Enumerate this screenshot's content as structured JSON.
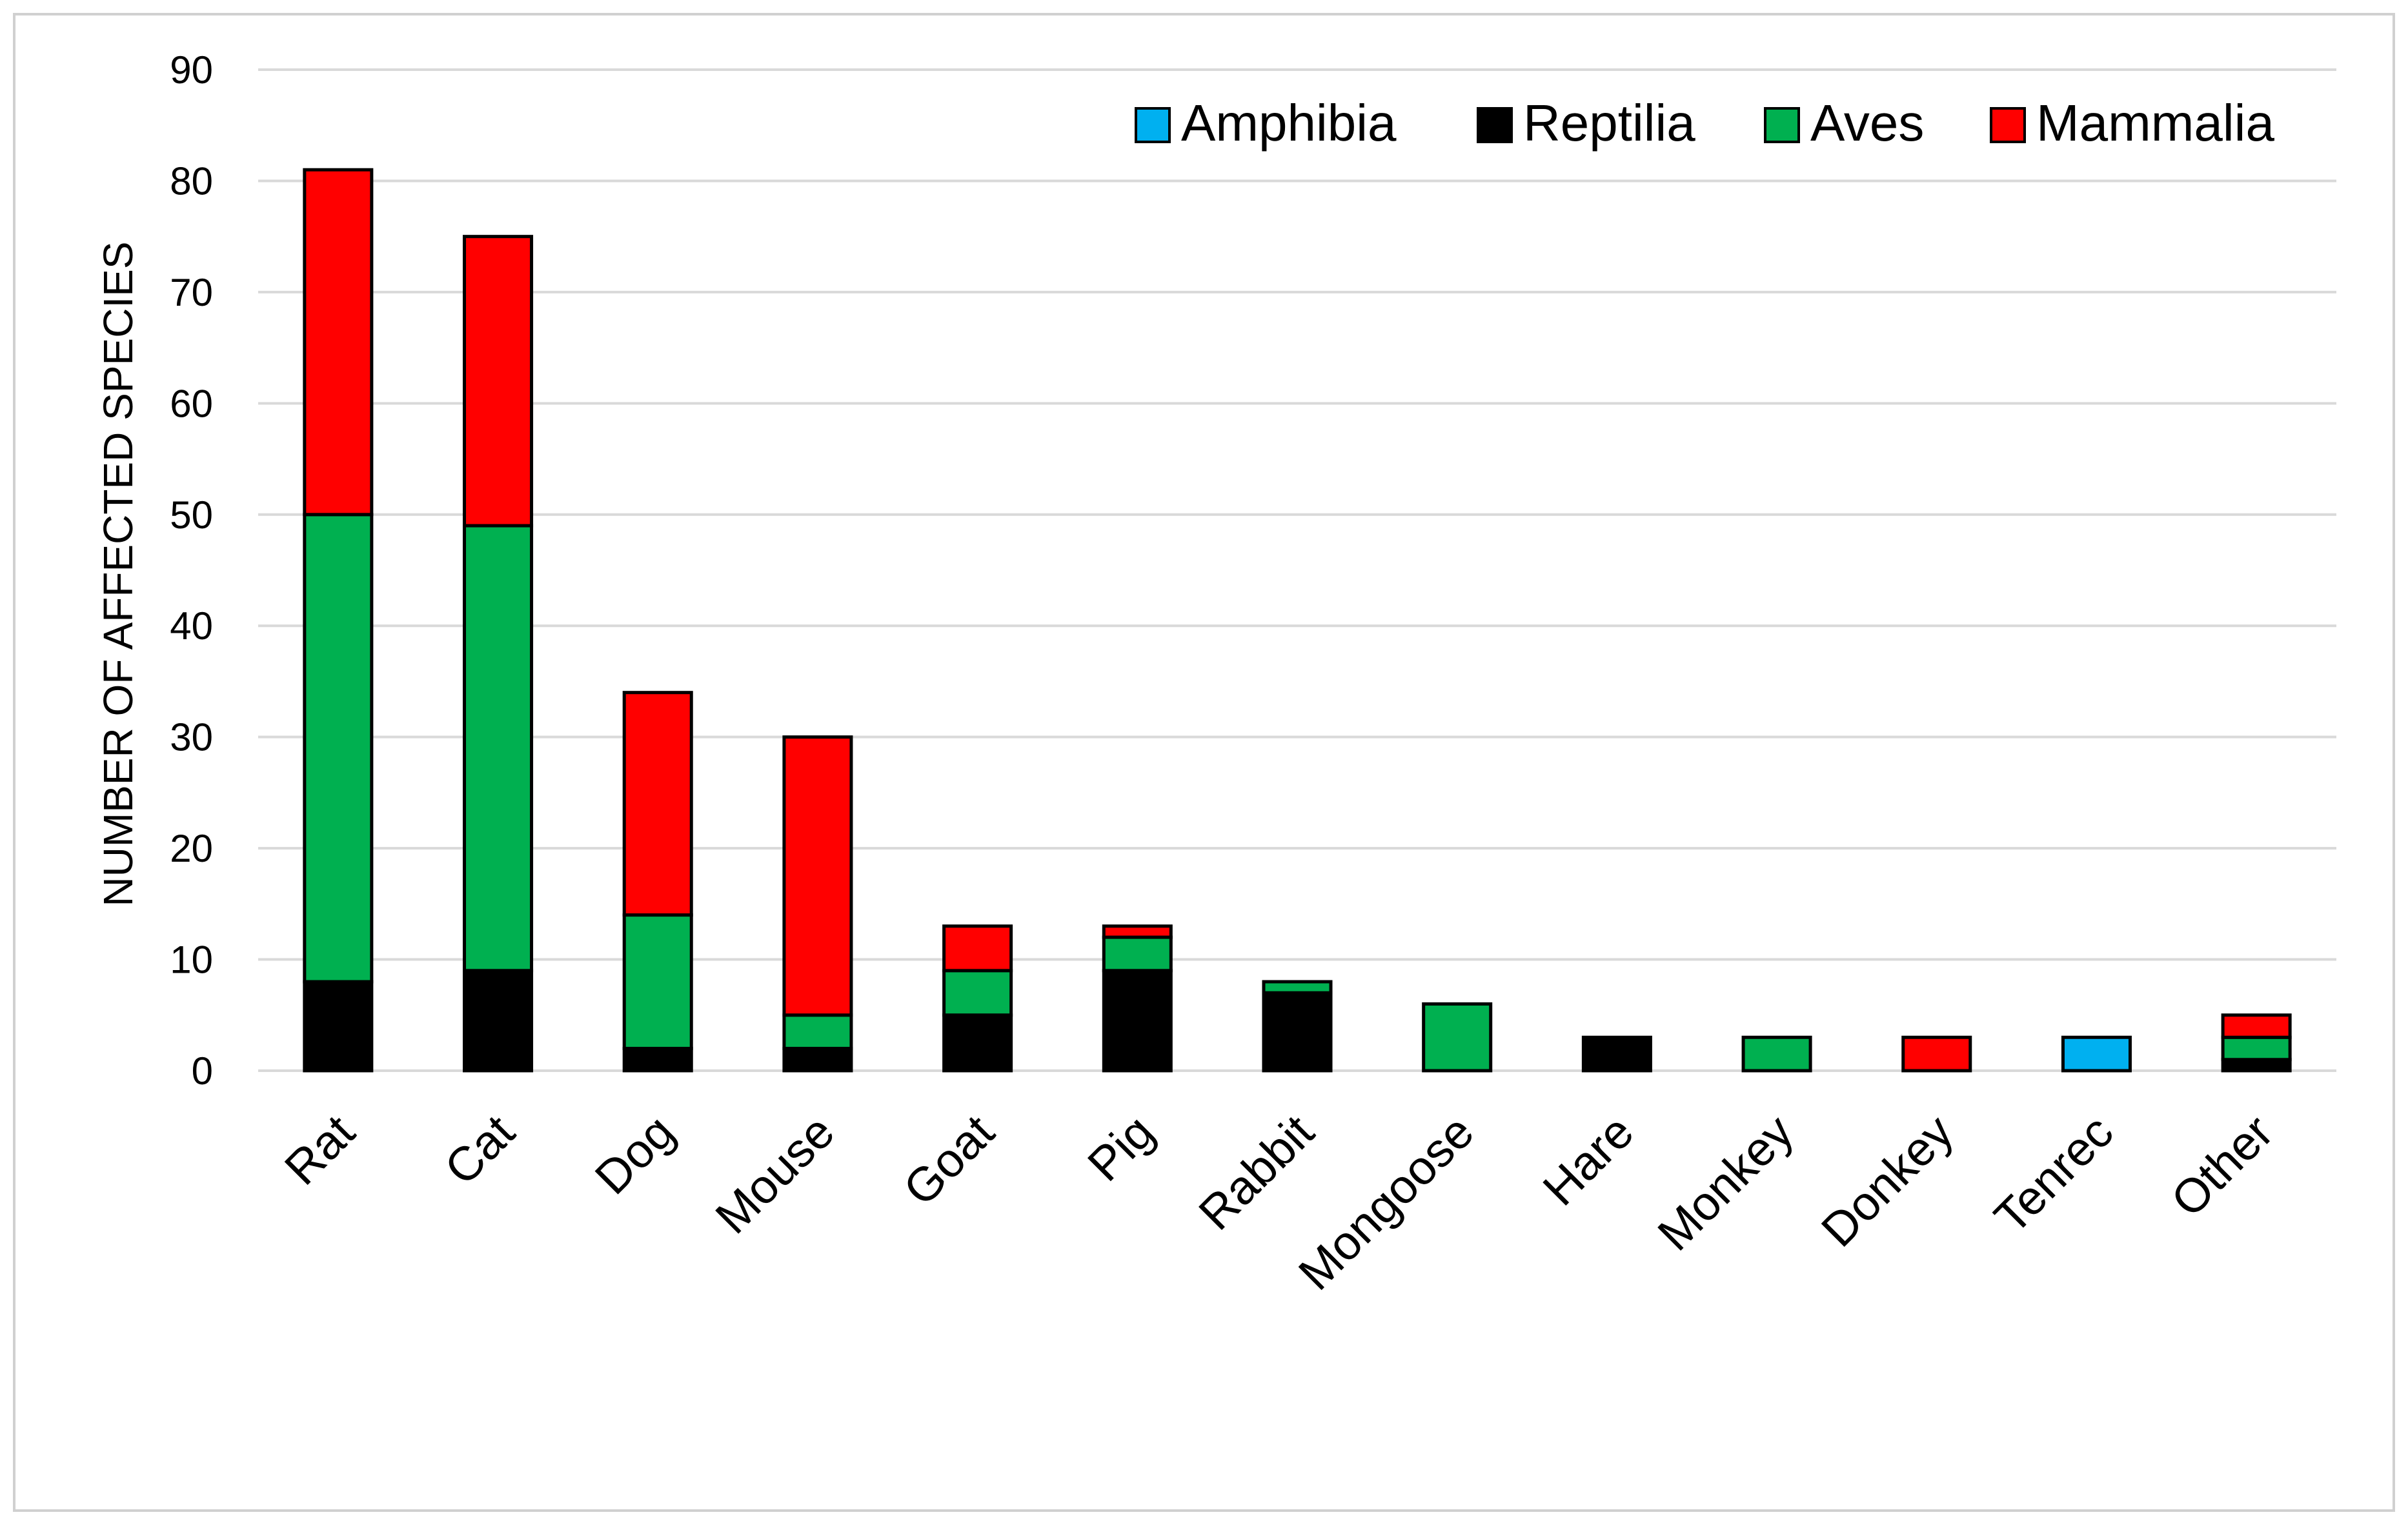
{
  "chart_data": {
    "type": "bar",
    "stacked": true,
    "title": "",
    "xlabel": "",
    "ylabel": "NUMBER OF AFFECTED SPECIES",
    "ylim": [
      0,
      90
    ],
    "yticks": [
      0,
      10,
      20,
      30,
      40,
      50,
      60,
      70,
      80,
      90
    ],
    "grid": true,
    "legend_position": "top-right",
    "categories": [
      "Rat",
      "Cat",
      "Dog",
      "Mouse",
      "Goat",
      "Pig",
      "Rabbit",
      "Mongoose",
      "Hare",
      "Monkey",
      "Donkey",
      "Tenrec",
      "Other"
    ],
    "series": [
      {
        "name": "Amphibia",
        "color": "#00B0F0",
        "values": [
          0,
          0,
          0,
          0,
          0,
          0,
          0,
          0,
          0,
          0,
          0,
          3,
          0
        ]
      },
      {
        "name": "Reptilia",
        "color": "#000000",
        "values": [
          8,
          9,
          2,
          2,
          5,
          9,
          7,
          0,
          3,
          0,
          0,
          0,
          1
        ]
      },
      {
        "name": "Aves",
        "color": "#00B050",
        "values": [
          42,
          40,
          12,
          3,
          4,
          3,
          1,
          6,
          0,
          3,
          0,
          0,
          2
        ]
      },
      {
        "name": "Mammalia",
        "color": "#FF0000",
        "values": [
          31,
          26,
          20,
          25,
          4,
          1,
          0,
          0,
          0,
          0,
          3,
          0,
          2
        ]
      }
    ]
  }
}
